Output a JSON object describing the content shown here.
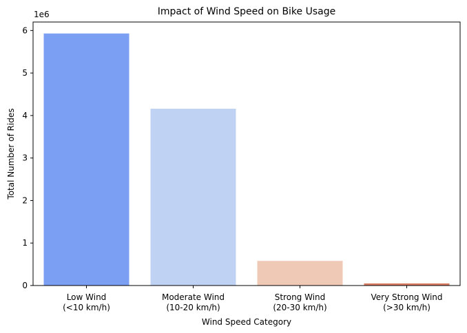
{
  "chart_data": {
    "type": "bar",
    "title": "Impact of Wind Speed on Bike Usage",
    "xlabel": "Wind Speed Category",
    "ylabel": "Total Number of Rides",
    "y_offset_label": "1e6",
    "categories": [
      [
        "Low Wind",
        "(<10 km/h)"
      ],
      [
        "Moderate Wind",
        "(10-20 km/h)"
      ],
      [
        "Strong Wind",
        "(20-30 km/h)"
      ],
      [
        "Very Strong Wind",
        "(>30 km/h)"
      ]
    ],
    "values": [
      5930000,
      4160000,
      580000,
      50000
    ],
    "colors": [
      "#7b9ff2",
      "#c0d2f3",
      "#efc9b5",
      "#d97c64"
    ],
    "ylim": [
      0,
      6200000
    ],
    "yticks": [
      0,
      1000000,
      2000000,
      3000000,
      4000000,
      5000000,
      6000000
    ],
    "ytick_labels": [
      "0",
      "1",
      "2",
      "3",
      "4",
      "5",
      "6"
    ],
    "grid": false,
    "legend": "none"
  }
}
